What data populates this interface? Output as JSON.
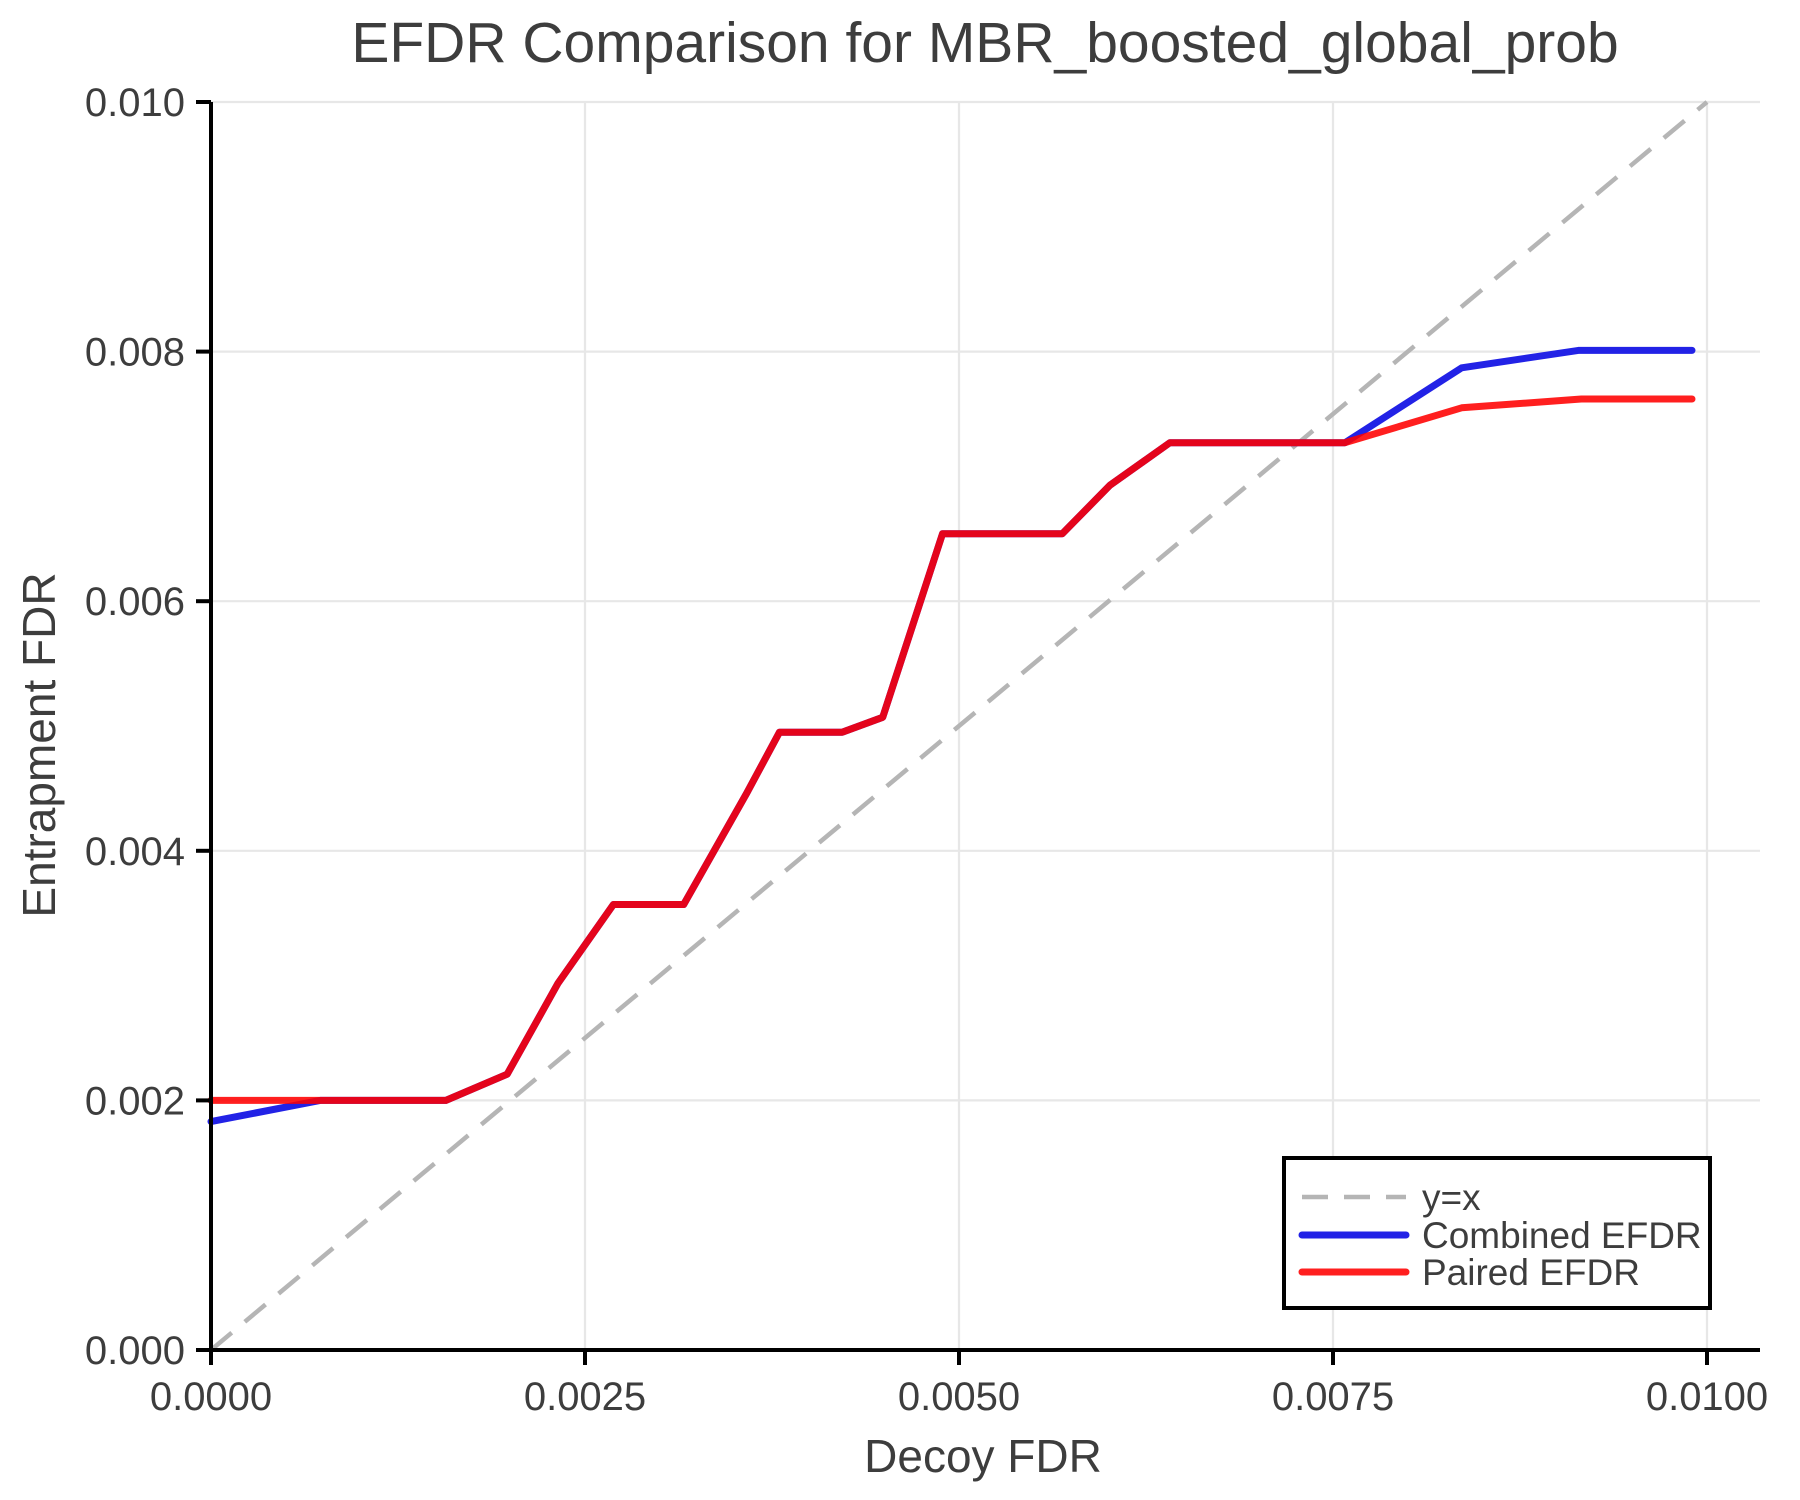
{
  "figure": {
    "title": "EFDR Comparison for MBR_boosted_global_prob"
  },
  "chart_data": {
    "type": "line",
    "title": "EFDR Comparison for MBR_boosted_global_prob",
    "xlabel": "Decoy FDR",
    "ylabel": "Entrapment FDR",
    "xlim": [
      0.0,
      0.01
    ],
    "ylim": [
      0.0,
      0.01
    ],
    "grid": true,
    "legend_position": "lower right",
    "colors": {
      "grid": "#e7e7e7",
      "spine": "#000000",
      "text": "#3d3d3d",
      "legend_border": "#000000",
      "legend_background": "#ffffff",
      "reference": "#b5b5b5",
      "combined": "#2222e6",
      "paired": "#ff0000"
    },
    "xticks": {
      "values": [
        0.0,
        0.0025,
        0.005,
        0.0075,
        0.01
      ],
      "labels": [
        "0.0000",
        "0.0025",
        "0.0050",
        "0.0075",
        "0.0100"
      ]
    },
    "yticks": {
      "values": [
        0.0,
        0.002,
        0.004,
        0.006,
        0.008,
        0.01
      ],
      "labels": [
        "0.000",
        "0.002",
        "0.004",
        "0.006",
        "0.008",
        "0.010"
      ]
    },
    "series": [
      {
        "name": "y=x",
        "role": "reference-line",
        "color": "#b5b5b5",
        "line_style": "dashed",
        "line_width": 4.5,
        "opacity": 1,
        "points": [
          [
            0.0,
            0.0
          ],
          [
            0.01,
            0.01
          ]
        ]
      },
      {
        "name": "Combined EFDR",
        "role": "data-line",
        "color": "#2222e6",
        "line_style": "solid",
        "line_width": 7,
        "opacity": 1,
        "points": [
          [
            0.0,
            0.00183
          ],
          [
            0.00073,
            0.002
          ],
          [
            0.00157,
            0.002
          ],
          [
            0.00198,
            0.00221
          ],
          [
            0.00232,
            0.00294
          ],
          [
            0.00269,
            0.00357
          ],
          [
            0.00316,
            0.00357
          ],
          [
            0.00358,
            0.00446
          ],
          [
            0.0038,
            0.00495
          ],
          [
            0.00422,
            0.00495
          ],
          [
            0.00449,
            0.00507
          ],
          [
            0.00489,
            0.00654
          ],
          [
            0.00569,
            0.00654
          ],
          [
            0.00601,
            0.00693
          ],
          [
            0.00641,
            0.00727
          ],
          [
            0.00758,
            0.00727
          ],
          [
            0.00836,
            0.00787
          ],
          [
            0.00914,
            0.00801
          ],
          [
            0.0099,
            0.00801
          ]
        ]
      },
      {
        "name": "Paired EFDR",
        "role": "data-line",
        "color": "#ff0000",
        "line_style": "solid",
        "line_width": 7,
        "opacity": 0.88,
        "points": [
          [
            0.0,
            0.002
          ],
          [
            0.00157,
            0.002
          ],
          [
            0.00198,
            0.00221
          ],
          [
            0.00232,
            0.00294
          ],
          [
            0.00269,
            0.00357
          ],
          [
            0.00316,
            0.00357
          ],
          [
            0.00358,
            0.00446
          ],
          [
            0.0038,
            0.00495
          ],
          [
            0.00422,
            0.00495
          ],
          [
            0.00449,
            0.00507
          ],
          [
            0.00489,
            0.00654
          ],
          [
            0.00569,
            0.00654
          ],
          [
            0.00601,
            0.00693
          ],
          [
            0.00641,
            0.00727
          ],
          [
            0.00758,
            0.00727
          ],
          [
            0.00836,
            0.00755
          ],
          [
            0.00916,
            0.00762
          ],
          [
            0.0099,
            0.00762
          ]
        ]
      }
    ],
    "legend": {
      "entries": [
        "y=x",
        "Combined EFDR",
        "Paired EFDR"
      ]
    }
  }
}
